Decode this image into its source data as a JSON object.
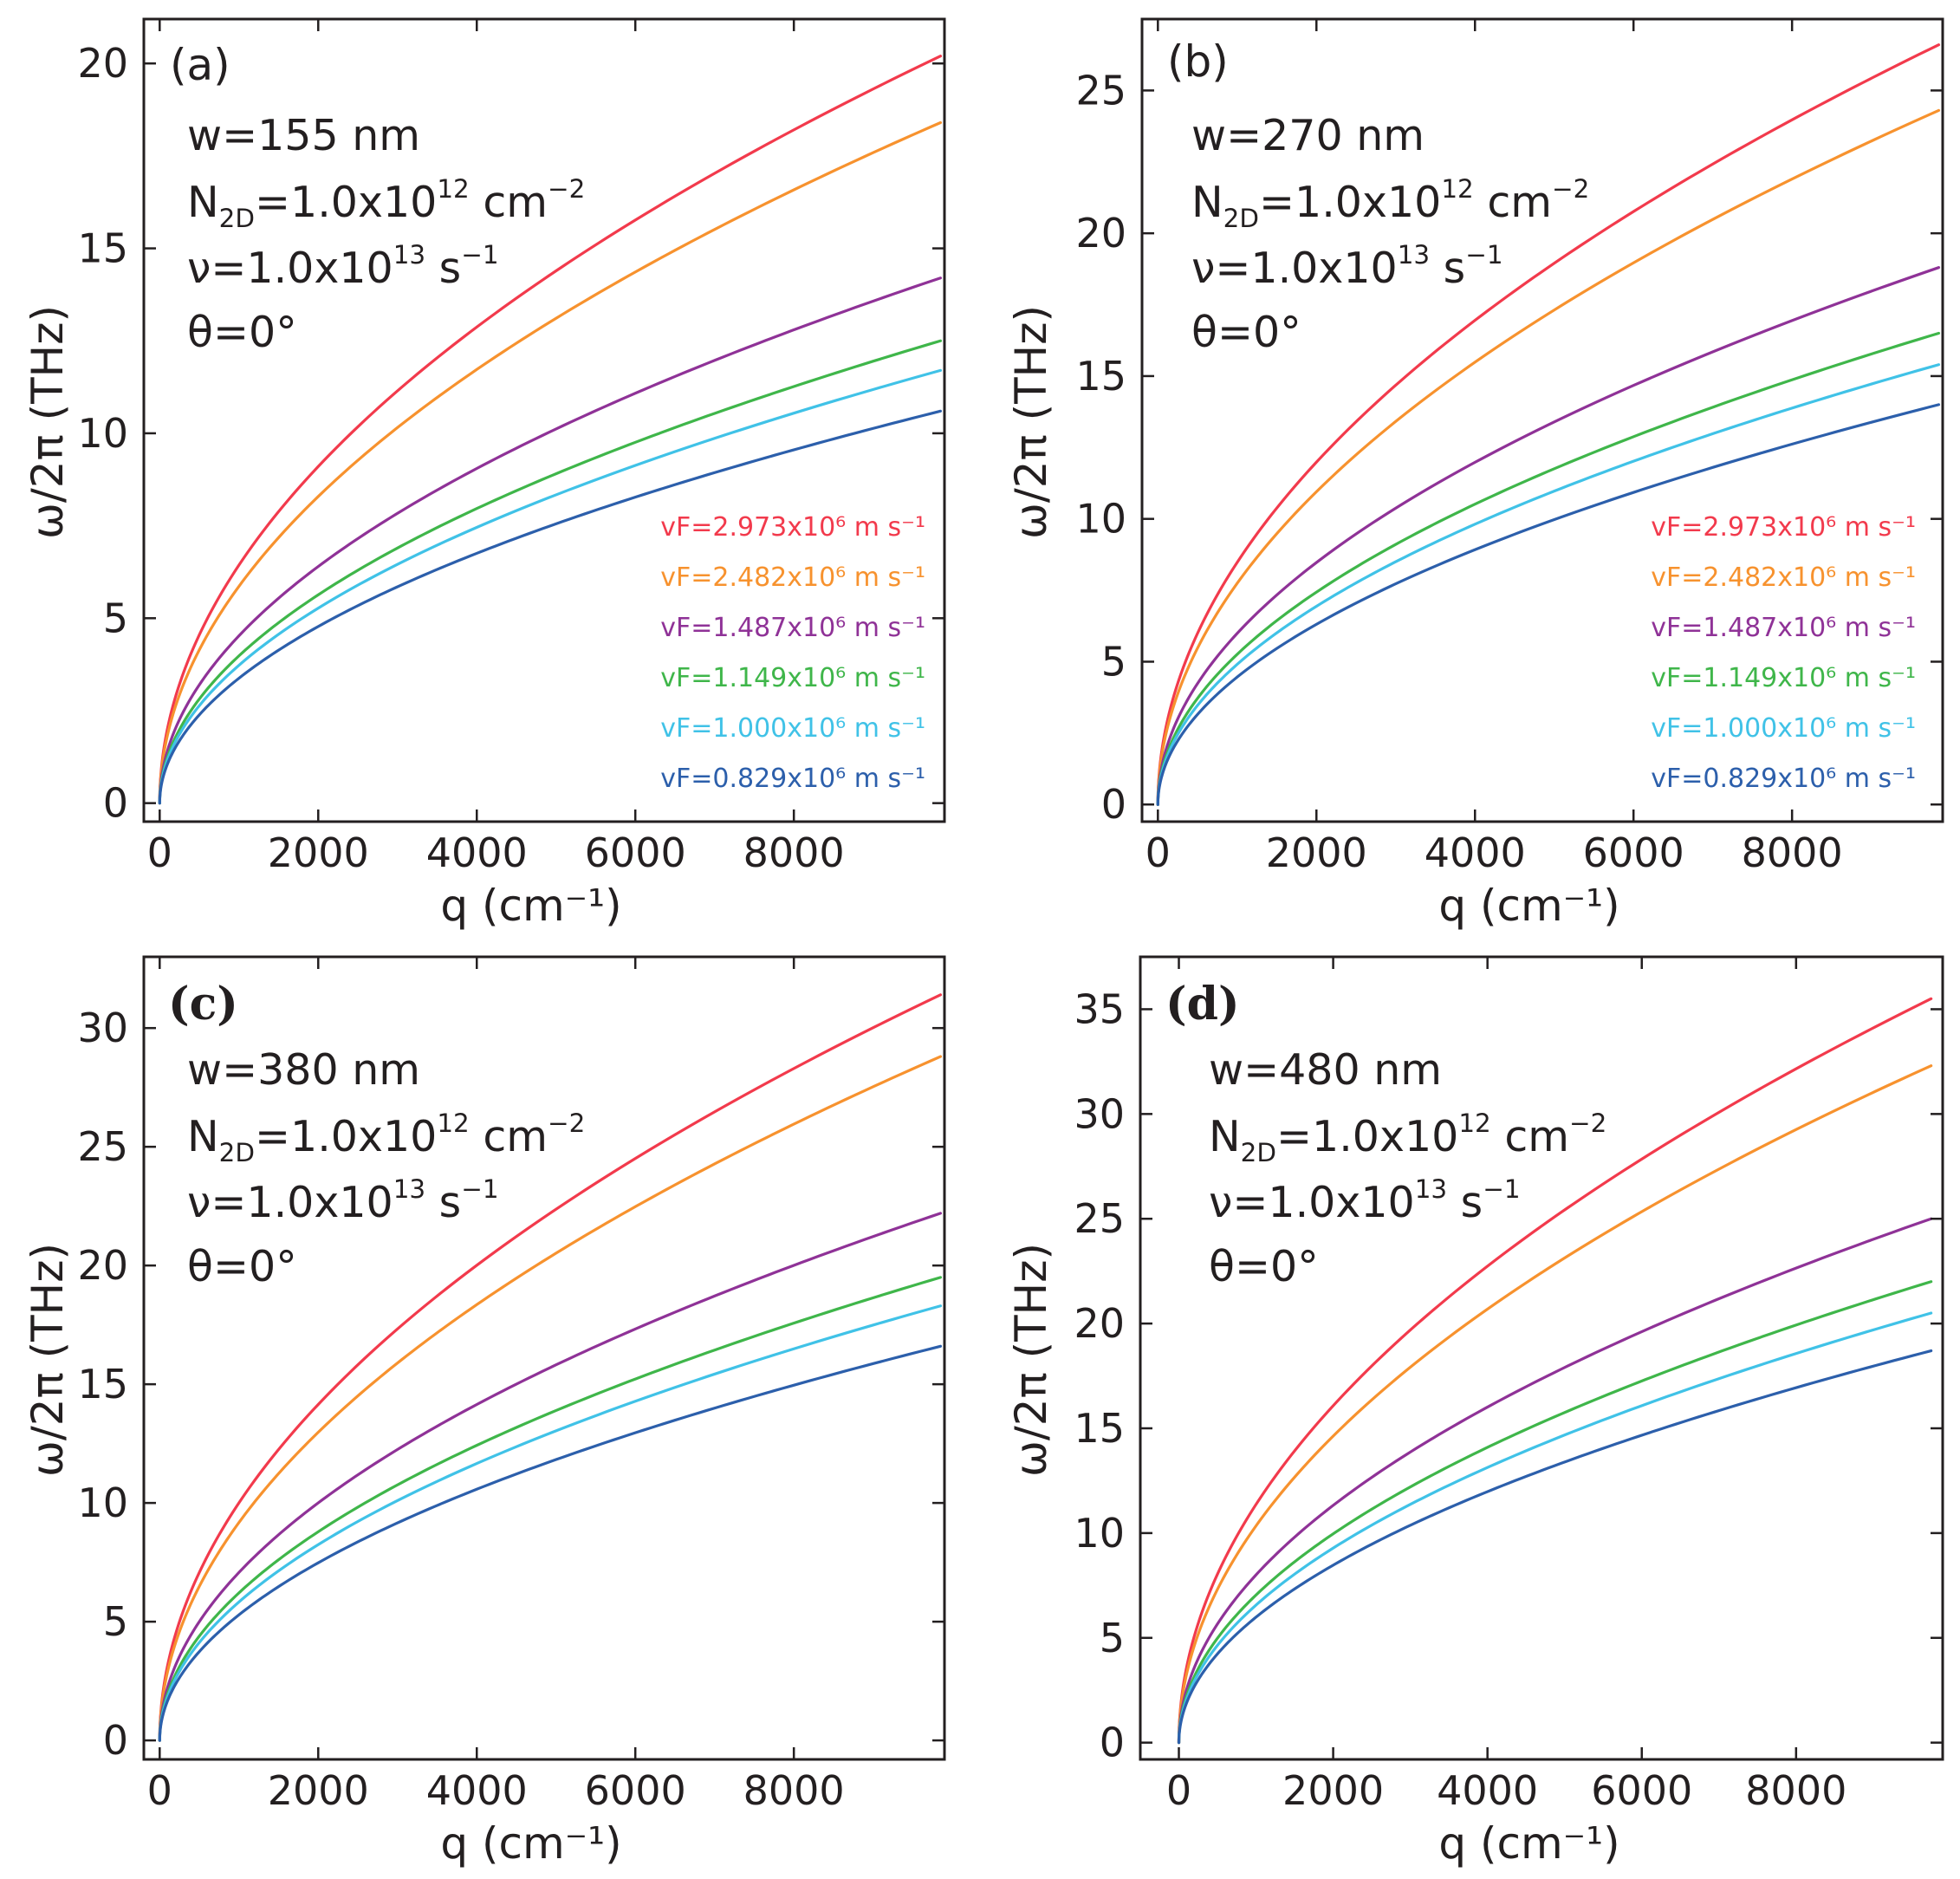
{
  "colors": {
    "axis": "#231f20",
    "red": "#f23a4c",
    "orange": "#f7922e",
    "purple": "#8f3297",
    "green": "#3fb64a",
    "cyan": "#40c2e7",
    "blue": "#2c5fab"
  },
  "chart_data": [
    {
      "type": "line",
      "panel_label": "(a)",
      "xlabel": "q (cm⁻¹)",
      "ylabel": "ω/2π (THz)",
      "xlim": [
        -200,
        9900
      ],
      "ylim": [
        -0.5,
        21.2
      ],
      "xticks": [
        0,
        2000,
        4000,
        6000,
        8000
      ],
      "yticks": [
        0,
        5,
        10,
        15,
        20
      ],
      "xticklabels": [
        "0",
        "2000",
        "4000",
        "6000",
        "8000"
      ],
      "yticklabels": [
        "0",
        "5",
        "10",
        "15",
        "20"
      ],
      "annotations": {
        "w": "w=155 nm",
        "n_main": "N",
        "n_sub": "2D",
        "n_rest": "=1.0x10",
        "n_exp": "12",
        "n_unit": " cm",
        "n_unit_exp": "−2",
        "nu_main": "ν=1.0x10",
        "nu_exp": "13",
        "nu_unit": " s",
        "nu_unit_exp": "−1",
        "theta": "θ=0°"
      },
      "legend_position": "lower-right",
      "series": [
        {
          "name": "vF=2.973x10⁶ m s⁻¹",
          "color_key": "red",
          "end_value": 20.2
        },
        {
          "name": "vF=2.482x10⁶ m s⁻¹",
          "color_key": "orange",
          "end_value": 18.4
        },
        {
          "name": "vF=1.487x10⁶ m s⁻¹",
          "color_key": "purple",
          "end_value": 14.2
        },
        {
          "name": "vF=1.149x10⁶ m s⁻¹",
          "color_key": "green",
          "end_value": 12.5
        },
        {
          "name": "vF=1.000x10⁶ m s⁻¹",
          "color_key": "cyan",
          "end_value": 11.7
        },
        {
          "name": "vF=0.829x10⁶ m s⁻¹",
          "color_key": "blue",
          "end_value": 10.6
        }
      ],
      "q_max": 9850
    },
    {
      "type": "line",
      "panel_label": "(b)",
      "xlabel": "q (cm⁻¹)",
      "ylabel": "ω/2π (THz)",
      "xlim": [
        -200,
        9900
      ],
      "ylim": [
        -0.6,
        27.5
      ],
      "xticks": [
        0,
        2000,
        4000,
        6000,
        8000
      ],
      "yticks": [
        0,
        5,
        10,
        15,
        20,
        25
      ],
      "xticklabels": [
        "0",
        "2000",
        "4000",
        "6000",
        "8000"
      ],
      "yticklabels": [
        "0",
        "5",
        "10",
        "15",
        "20",
        "25"
      ],
      "annotations": {
        "w": "w=270 nm",
        "n_main": "N",
        "n_sub": "2D",
        "n_rest": "=1.0x10",
        "n_exp": "12",
        "n_unit": " cm",
        "n_unit_exp": "−2",
        "nu_main": "ν=1.0x10",
        "nu_exp": "13",
        "nu_unit": " s",
        "nu_unit_exp": "−1",
        "theta": "θ=0°"
      },
      "legend_position": "lower-right",
      "series": [
        {
          "name": "vF=2.973x10⁶ m s⁻¹",
          "color_key": "red",
          "end_value": 26.6
        },
        {
          "name": "vF=2.482x10⁶ m s⁻¹",
          "color_key": "orange",
          "end_value": 24.3
        },
        {
          "name": "vF=1.487x10⁶ m s⁻¹",
          "color_key": "purple",
          "end_value": 18.8
        },
        {
          "name": "vF=1.149x10⁶ m s⁻¹",
          "color_key": "green",
          "end_value": 16.5
        },
        {
          "name": "vF=1.000x10⁶ m s⁻¹",
          "color_key": "cyan",
          "end_value": 15.4
        },
        {
          "name": "vF=0.829x10⁶ m s⁻¹",
          "color_key": "blue",
          "end_value": 14.0
        }
      ],
      "q_max": 9850
    },
    {
      "type": "line",
      "panel_label": "(c)",
      "xlabel": "q (cm⁻¹)",
      "ylabel": "ω/2π (THz)",
      "xlim": [
        -200,
        9900
      ],
      "ylim": [
        -0.8,
        33
      ],
      "xticks": [
        0,
        2000,
        4000,
        6000,
        8000
      ],
      "yticks": [
        0,
        5,
        10,
        15,
        20,
        25,
        30
      ],
      "xticklabels": [
        "0",
        "2000",
        "4000",
        "6000",
        "8000"
      ],
      "yticklabels": [
        "0",
        "5",
        "10",
        "15",
        "20",
        "25",
        "30"
      ],
      "annotations": {
        "w": "w=380 nm",
        "n_main": "N",
        "n_sub": "2D",
        "n_rest": "=1.0x10",
        "n_exp": "12",
        "n_unit": " cm",
        "n_unit_exp": "−2",
        "nu_main": "ν=1.0x10",
        "nu_exp": "13",
        "nu_unit": " s",
        "nu_unit_exp": "−1",
        "theta": "θ=0°"
      },
      "legend_position": "none",
      "series": [
        {
          "name": "vF=2.973x10⁶ m s⁻¹",
          "color_key": "red",
          "end_value": 31.4
        },
        {
          "name": "vF=2.482x10⁶ m s⁻¹",
          "color_key": "orange",
          "end_value": 28.8
        },
        {
          "name": "vF=1.487x10⁶ m s⁻¹",
          "color_key": "purple",
          "end_value": 22.2
        },
        {
          "name": "vF=1.149x10⁶ m s⁻¹",
          "color_key": "green",
          "end_value": 19.5
        },
        {
          "name": "vF=1.000x10⁶ m s⁻¹",
          "color_key": "cyan",
          "end_value": 18.3
        },
        {
          "name": "vF=0.829x10⁶ m s⁻¹",
          "color_key": "blue",
          "end_value": 16.6
        }
      ],
      "q_max": 9850
    },
    {
      "type": "line",
      "panel_label": "(d)",
      "xlabel": "q (cm⁻¹)",
      "ylabel": "ω/2π (THz)",
      "xlim": [
        -500,
        9900
      ],
      "ylim": [
        -0.8,
        37.5
      ],
      "xticks": [
        0,
        2000,
        4000,
        6000,
        8000
      ],
      "yticks": [
        0,
        5,
        10,
        15,
        20,
        25,
        30,
        35
      ],
      "xticklabels": [
        "0",
        "2000",
        "4000",
        "6000",
        "8000"
      ],
      "yticklabels": [
        "0",
        "5",
        "10",
        "15",
        "20",
        "25",
        "30",
        "35"
      ],
      "annotations": {
        "w": "w=480 nm",
        "n_main": "N",
        "n_sub": "2D",
        "n_rest": "=1.0x10",
        "n_exp": "12",
        "n_unit": " cm",
        "n_unit_exp": "−2",
        "nu_main": "ν=1.0x10",
        "nu_exp": "13",
        "nu_unit": " s",
        "nu_unit_exp": "−1",
        "theta": "θ=0°"
      },
      "legend_position": "none",
      "series": [
        {
          "name": "vF=2.973x10⁶ m s⁻¹",
          "color_key": "red",
          "end_value": 35.5
        },
        {
          "name": "vF=2.482x10⁶ m s⁻¹",
          "color_key": "orange",
          "end_value": 32.3
        },
        {
          "name": "vF=1.487x10⁶ m s⁻¹",
          "color_key": "purple",
          "end_value": 25.0
        },
        {
          "name": "vF=1.149x10⁶ m s⁻¹",
          "color_key": "green",
          "end_value": 22.0
        },
        {
          "name": "vF=1.000x10⁶ m s⁻¹",
          "color_key": "cyan",
          "end_value": 20.5
        },
        {
          "name": "vF=0.829x10⁶ m s⁻¹",
          "color_key": "blue",
          "end_value": 18.7
        }
      ],
      "q_max": 9750
    }
  ]
}
